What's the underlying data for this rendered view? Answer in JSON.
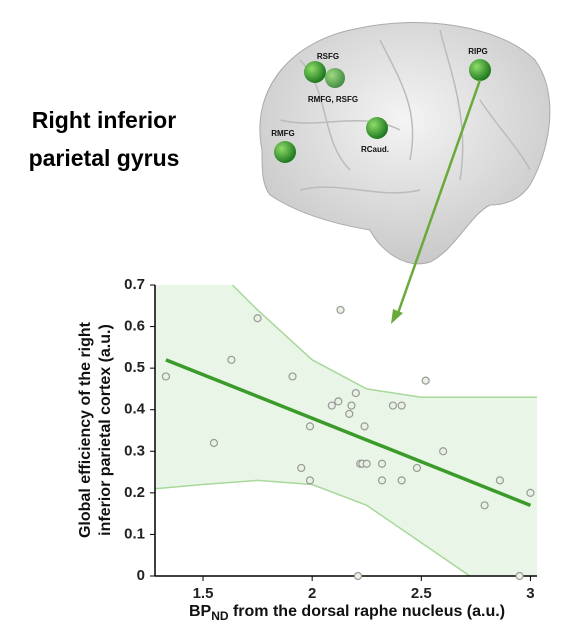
{
  "title_lines": [
    "Right inferior",
    "parietal gyrus"
  ],
  "brain": {
    "labels": [
      "RSFG",
      "RMFG, RSFG",
      "RIPG",
      "RMFG",
      "RCaud."
    ]
  },
  "chart_data": {
    "type": "scatter",
    "ylabel_lines": [
      "Global efficiency of the right",
      "inferior parietal cortex (a.u.)"
    ],
    "xlabel": {
      "main": "BP",
      "sub": "ND",
      "rest": " from the  dorsal raphe nucleus (a.u.)"
    },
    "xlim": [
      1.28,
      3.03
    ],
    "ylim": [
      0,
      0.7
    ],
    "xticks": [
      1.5,
      2,
      2.5,
      3
    ],
    "yticks": [
      0,
      0.1,
      0.2,
      0.3,
      0.4,
      0.5,
      0.6,
      0.7
    ],
    "color": "#9a9a9a",
    "line_color": "#3a9a2a",
    "band_color": "#a8d89a",
    "x": [
      1.33,
      1.55,
      1.63,
      1.75,
      1.91,
      1.95,
      1.99,
      1.99,
      2.09,
      2.12,
      2.13,
      2.17,
      2.18,
      2.2,
      2.22,
      2.23,
      2.25,
      2.24,
      2.21,
      2.37,
      2.41,
      2.32,
      2.32,
      2.41,
      2.52,
      2.48,
      2.6,
      2.79,
      2.86,
      2.95,
      3.0
    ],
    "values": [
      0.48,
      0.32,
      0.52,
      0.62,
      0.48,
      0.26,
      0.23,
      0.36,
      0.41,
      0.42,
      0.64,
      0.39,
      0.41,
      0.44,
      0.27,
      0.27,
      0.27,
      0.36,
      0,
      0.41,
      0.41,
      0.23,
      0.27,
      0.23,
      0.47,
      0.26,
      0.3,
      0.17,
      0.23,
      0,
      0.2
    ],
    "fit": {
      "x": [
        1.33,
        3.0
      ],
      "values": [
        0.52,
        0.17
      ]
    },
    "band": {
      "x": [
        1.28,
        1.5,
        1.75,
        2.0,
        2.25,
        2.5,
        2.75,
        3.03
      ],
      "upper": [
        0.9,
        0.77,
        0.64,
        0.52,
        0.45,
        0.43,
        0.43,
        0.43
      ],
      "lower": [
        0.21,
        0.22,
        0.23,
        0.22,
        0.17,
        0.08,
        -0.01,
        -0.08
      ]
    }
  }
}
